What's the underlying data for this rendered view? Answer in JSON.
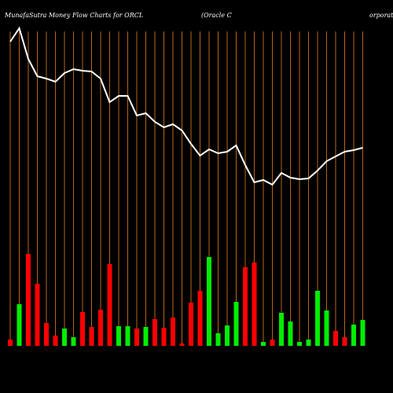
{
  "chart_data": {
    "type": "money-flow",
    "title": "MunafaSutra  Money Flow  Charts for ORCL",
    "subtitle": "(Oracle   C",
    "subtitle2": "orporation)",
    "ylim": [
      0,
      440
    ],
    "grid": true,
    "grid_color": "#b8661a",
    "series": [
      {
        "type": "bar",
        "up_color": "#00ee00",
        "down_color": "#ff0000",
        "values": [
          8,
          53,
          117,
          79,
          29,
          13,
          22,
          11,
          43,
          24,
          46,
          104,
          25,
          25,
          22,
          24,
          34,
          23,
          36,
          3,
          55,
          70,
          113,
          16,
          26,
          56,
          100,
          106,
          5,
          8,
          42,
          31,
          5,
          8,
          70,
          45,
          19,
          11,
          27,
          33
        ],
        "directions": [
          "down",
          "up",
          "down",
          "down",
          "down",
          "down",
          "up",
          "up",
          "down",
          "down",
          "down",
          "down",
          "up",
          "up",
          "down",
          "up",
          "down",
          "down",
          "down",
          "down",
          "down",
          "down",
          "up",
          "up",
          "up",
          "up",
          "down",
          "down",
          "up",
          "down",
          "up",
          "up",
          "up",
          "up",
          "up",
          "up",
          "down",
          "down",
          "up",
          "up"
        ]
      },
      {
        "type": "line",
        "color": "#ffffff",
        "values": [
          387,
          404,
          365,
          343,
          340,
          336,
          347,
          352,
          350,
          349,
          340,
          310,
          318,
          318,
          293,
          296,
          285,
          278,
          282,
          274,
          257,
          242,
          250,
          245,
          247,
          255,
          230,
          208,
          211,
          205,
          220,
          214,
          212,
          213,
          223,
          235,
          241,
          247,
          249,
          252
        ]
      }
    ]
  }
}
